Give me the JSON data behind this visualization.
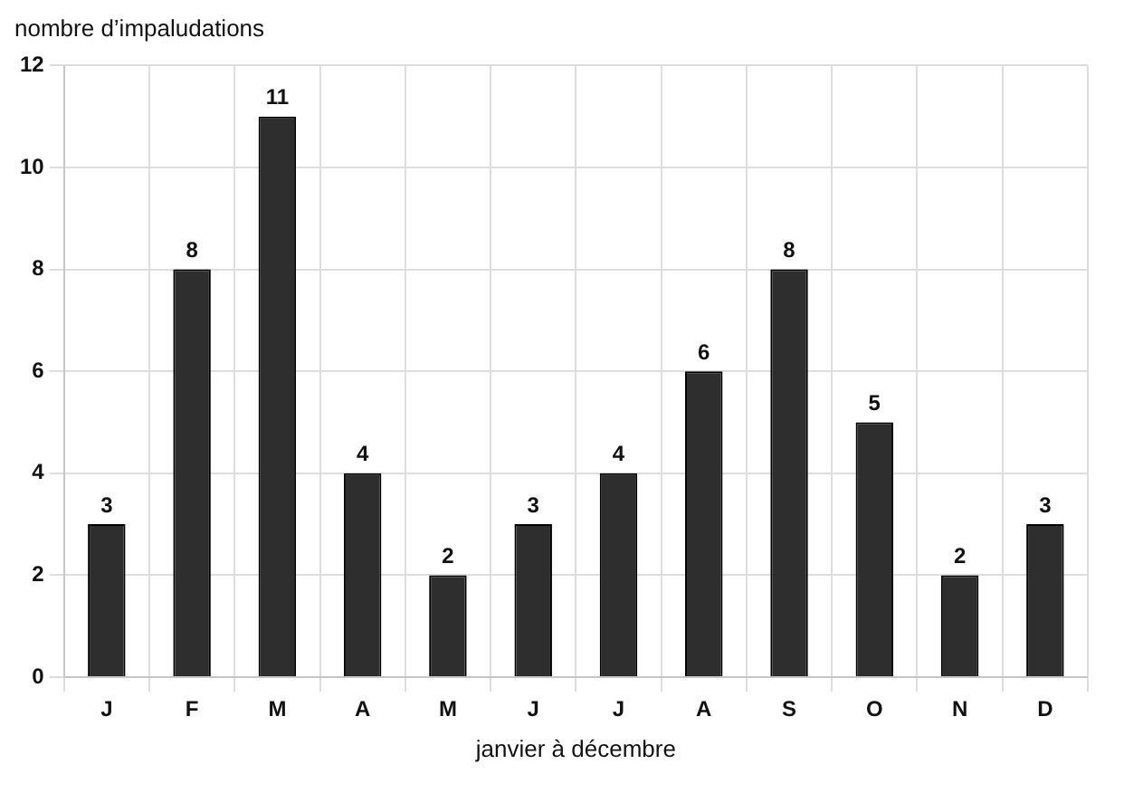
{
  "chart_data": {
    "type": "bar",
    "ylabel": "nombre d’impaludations",
    "xlabel": "janvier à décembre",
    "categories": [
      "J",
      "F",
      "M",
      "A",
      "M",
      "J",
      "J",
      "A",
      "S",
      "O",
      "N",
      "D"
    ],
    "values": [
      3,
      8,
      11,
      4,
      2,
      3,
      4,
      6,
      8,
      5,
      2,
      3
    ],
    "color": "#2e2e2e",
    "ylim": [
      0,
      12
    ],
    "yticks": [
      0,
      2,
      4,
      6,
      8,
      10,
      12
    ],
    "grid": true,
    "data_labels": true,
    "legend": false
  }
}
